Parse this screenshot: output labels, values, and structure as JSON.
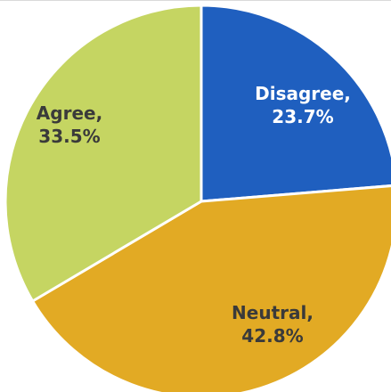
{
  "chart_data": {
    "type": "pie",
    "categories": [
      "Disagree",
      "Neutral",
      "Agree"
    ],
    "values": [
      23.7,
      42.8,
      33.5
    ],
    "labels": [
      [
        "Disagree,",
        "23.7%"
      ],
      [
        "Neutral,",
        "42.8%"
      ],
      [
        "Agree,",
        "33.5%"
      ]
    ],
    "colors": [
      "#1F5FBF",
      "#E2AA24",
      "#C5D562"
    ],
    "label_colors": [
      "#ffffff",
      "#3a3a3a",
      "#3a3a3a"
    ],
    "start": "12 o'clock",
    "direction": "clockwise"
  }
}
